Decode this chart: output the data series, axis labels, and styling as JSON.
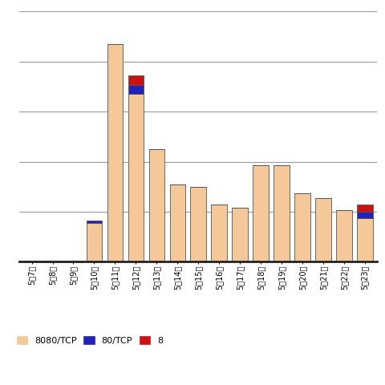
{
  "categories": [
    "5月7日",
    "5月8日",
    "5月9日",
    "5月10日",
    "5月11日",
    "5月12日",
    "5月13日",
    "5月14日",
    "5月15日",
    "5月16日",
    "5月17日",
    "5月18日",
    "5月19日",
    "5月20日",
    "5月21日",
    "5月22日",
    "5月23日"
  ],
  "values_8080": [
    3,
    3,
    3,
    155,
    870,
    670,
    450,
    310,
    300,
    230,
    215,
    385,
    385,
    275,
    255,
    205,
    175
  ],
  "values_80": [
    0,
    0,
    0,
    10,
    0,
    35,
    0,
    0,
    0,
    0,
    0,
    0,
    0,
    0,
    0,
    0,
    25
  ],
  "values_red": [
    0,
    0,
    0,
    0,
    0,
    40,
    0,
    0,
    0,
    0,
    0,
    0,
    0,
    0,
    0,
    0,
    30
  ],
  "color_8080": "#F5C89A",
  "color_80": "#2222BB",
  "color_red": "#CC1111",
  "background": "#FFFFFF",
  "grid_color": "#999999",
  "legend_labels": [
    "8080/TCP",
    "80/TCP",
    "8"
  ],
  "ylim": [
    0,
    1000
  ],
  "yticks": [
    0,
    200,
    400,
    600,
    800,
    1000
  ],
  "bar_edge_color": "#555555",
  "bar_edge_width": 0.6
}
